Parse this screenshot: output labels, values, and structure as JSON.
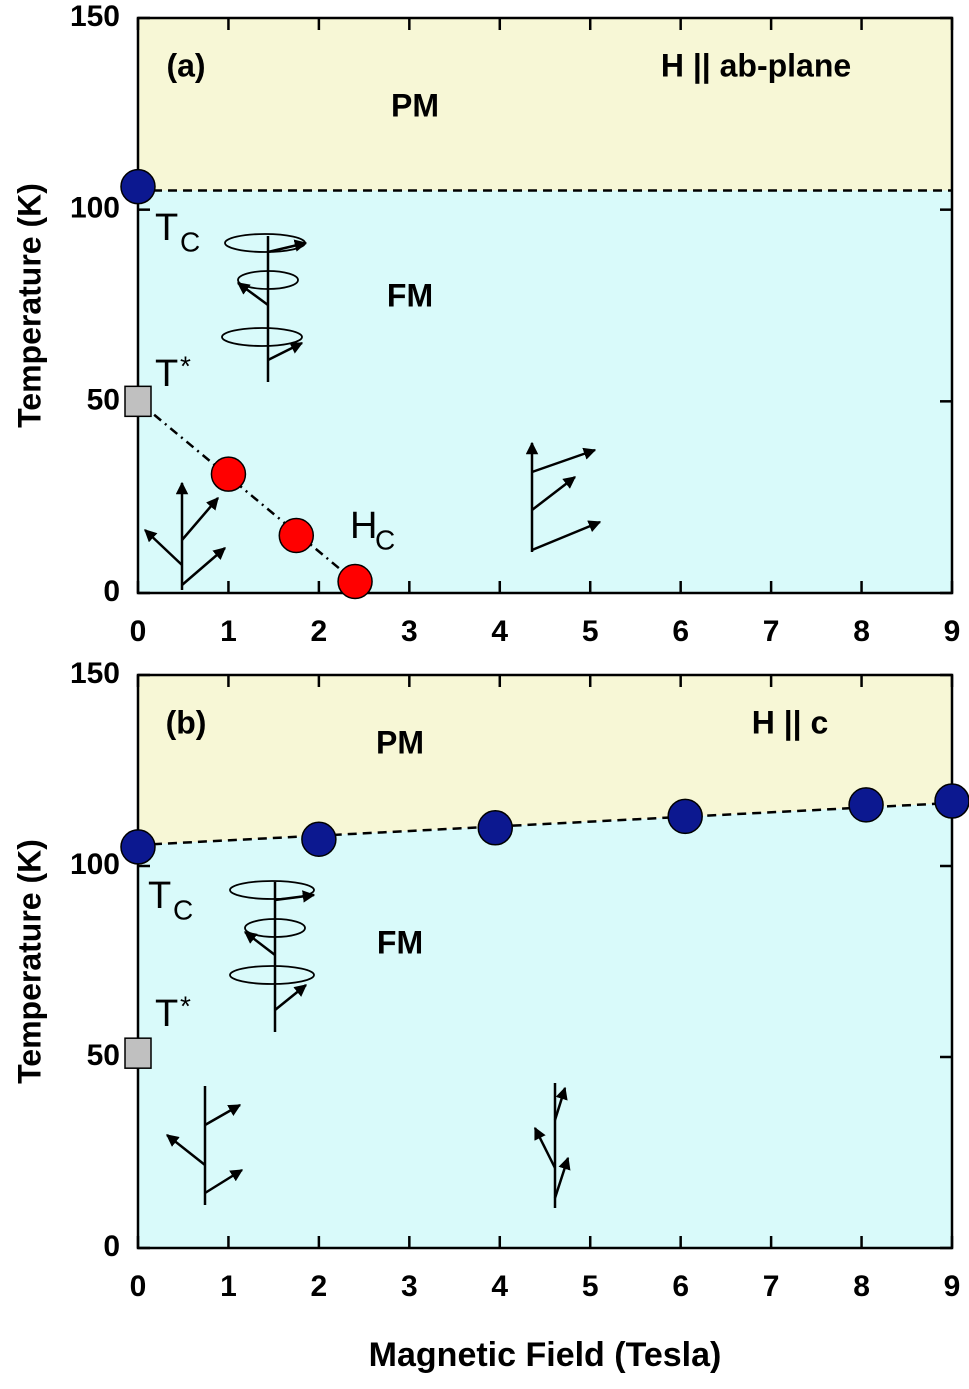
{
  "chart_data": [
    {
      "type": "scatter",
      "panel_label": "(a)",
      "annotation": "H || ab-plane",
      "ylabel": "Temperature (K)",
      "xlim": [
        0,
        9
      ],
      "xticks": [
        0,
        1,
        2,
        3,
        4,
        5,
        6,
        7,
        8,
        9
      ],
      "ylim": [
        0,
        150
      ],
      "yticks": [
        0,
        50,
        100,
        150
      ],
      "regions": [
        {
          "label": "PM",
          "color": "#f7f7d6"
        },
        {
          "label": "FM",
          "color": "#d9fafa"
        }
      ],
      "point_labels": [
        {
          "text": "T",
          "sub": "C"
        },
        {
          "text": "T",
          "sup": "*"
        },
        {
          "text": "H",
          "sub": "C"
        }
      ],
      "series": [
        {
          "x": [
            0,
            9
          ],
          "values": [
            105,
            105
          ],
          "line": "dashed",
          "color": "#000000",
          "fill_above": "#f7f7d6",
          "fill_below": "#d9fafa"
        },
        {
          "x": [
            0,
            2.4
          ],
          "values": [
            50,
            3
          ],
          "line": "dashdot",
          "color": "#000000"
        },
        {
          "x": [
            0
          ],
          "values": [
            106
          ],
          "marker": "circle",
          "color": "#0c1890"
        },
        {
          "x": [
            0
          ],
          "values": [
            50
          ],
          "marker": "square",
          "color": "#c0c0c0"
        },
        {
          "x": [
            1,
            1.75,
            2.4
          ],
          "values": [
            31,
            15,
            3
          ],
          "marker": "circle",
          "color": "#ff0000"
        }
      ]
    },
    {
      "type": "scatter",
      "panel_label": "(b)",
      "annotation": "H || c",
      "ylabel": "Temperature (K)",
      "xlabel": "Magnetic Field (Tesla)",
      "xlim": [
        0,
        9
      ],
      "xticks": [
        0,
        1,
        2,
        3,
        4,
        5,
        6,
        7,
        8,
        9
      ],
      "ylim": [
        0,
        150
      ],
      "yticks": [
        0,
        50,
        100,
        150
      ],
      "regions": [
        {
          "label": "PM",
          "color": "#f7f7d6"
        },
        {
          "label": "FM",
          "color": "#d9fafa"
        }
      ],
      "point_labels": [
        {
          "text": "T",
          "sub": "C"
        },
        {
          "text": "T",
          "sup": "*"
        }
      ],
      "series": [
        {
          "x": [
            0,
            9
          ],
          "values": [
            105.5,
            116.5
          ],
          "line": "dashed",
          "color": "#000000",
          "fill_above": "#f7f7d6",
          "fill_below": "#d9fafa"
        },
        {
          "x": [
            0,
            2,
            3.95,
            6.05,
            8.05,
            9
          ],
          "values": [
            105,
            107,
            110,
            113,
            116,
            117
          ],
          "marker": "circle",
          "color": "#0c1890"
        },
        {
          "x": [
            0
          ],
          "values": [
            51
          ],
          "marker": "square",
          "color": "#c0c0c0"
        }
      ]
    }
  ]
}
